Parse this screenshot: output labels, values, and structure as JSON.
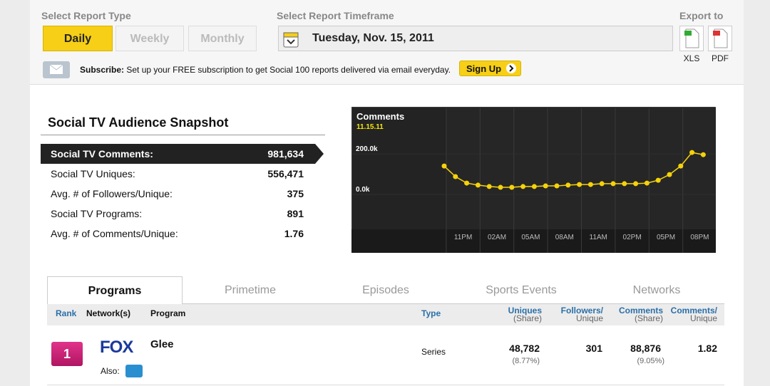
{
  "report_type": {
    "label": "Select Report Type",
    "options": [
      "Daily",
      "Weekly",
      "Monthly"
    ],
    "selected": 0
  },
  "timeframe": {
    "label": "Select Report Timeframe",
    "date": "Tuesday, Nov. 15, 2011"
  },
  "export": {
    "label": "Export to",
    "options": [
      "XLS",
      "PDF"
    ]
  },
  "subscribe": {
    "label": "Subscribe:",
    "text": "Set up your FREE subscription to get Social 100 reports delivered via email everyday.",
    "button": "Sign Up"
  },
  "snapshot": {
    "title": "Social TV Audience Snapshot",
    "rows": [
      [
        "Social TV Comments:",
        "981,634"
      ],
      [
        "Social TV Uniques:",
        "556,471"
      ],
      [
        "Avg. # of Followers/Unique:",
        "375"
      ],
      [
        "Social TV Programs:",
        "891"
      ],
      [
        "Avg. # of Comments/Unique:",
        "1.76"
      ]
    ],
    "highlighted": 0
  },
  "chart_data": {
    "type": "line",
    "title": "Comments",
    "subtitle": "11.15.11",
    "categories": [
      null,
      null,
      "11PM",
      null,
      null,
      "02AM",
      null,
      null,
      "05AM",
      null,
      null,
      "08AM",
      null,
      null,
      "11AM",
      null,
      null,
      "02PM",
      null,
      null,
      "05PM",
      null,
      null,
      "08PM"
    ],
    "series": [
      {
        "name": "Comments",
        "color": "#f5d20a",
        "values": [
          140000,
          88000,
          56000,
          46000,
          39000,
          35000,
          35000,
          39000,
          39000,
          42000,
          42000,
          46000,
          49000,
          49000,
          53000,
          53000,
          53000,
          53000,
          56000,
          70000,
          98000,
          140000,
          207000,
          196000
        ]
      }
    ],
    "ylim": [
      -172000,
      425000
    ],
    "yticks": [
      {
        "value": 200000,
        "label": "200.0k"
      },
      {
        "value": 0,
        "label": "0.0k"
      }
    ],
    "grid": true
  },
  "tabs": {
    "items": [
      "Programs",
      "Primetime",
      "Episodes",
      "Sports Events",
      "Networks"
    ],
    "selected": 0
  },
  "table": {
    "headers": [
      [
        "Rank"
      ],
      [
        "Network(s)"
      ],
      [
        "Program"
      ],
      [
        "Type"
      ],
      [
        "Uniques",
        "(Share)"
      ],
      [
        "Followers/",
        "Unique"
      ],
      [
        "Comments",
        "(Share)"
      ],
      [
        "Comments/",
        "Unique"
      ]
    ],
    "rows": [
      {
        "rank": "1",
        "network": "FOX",
        "program": "Glee",
        "also": "Also:",
        "type": "Series",
        "uniques": "48,782",
        "uniques_share": "(8.77%)",
        "followers": "301",
        "comments": "88,876",
        "comments_share": "(9.05%)",
        "comments_per": "1.82"
      }
    ]
  }
}
